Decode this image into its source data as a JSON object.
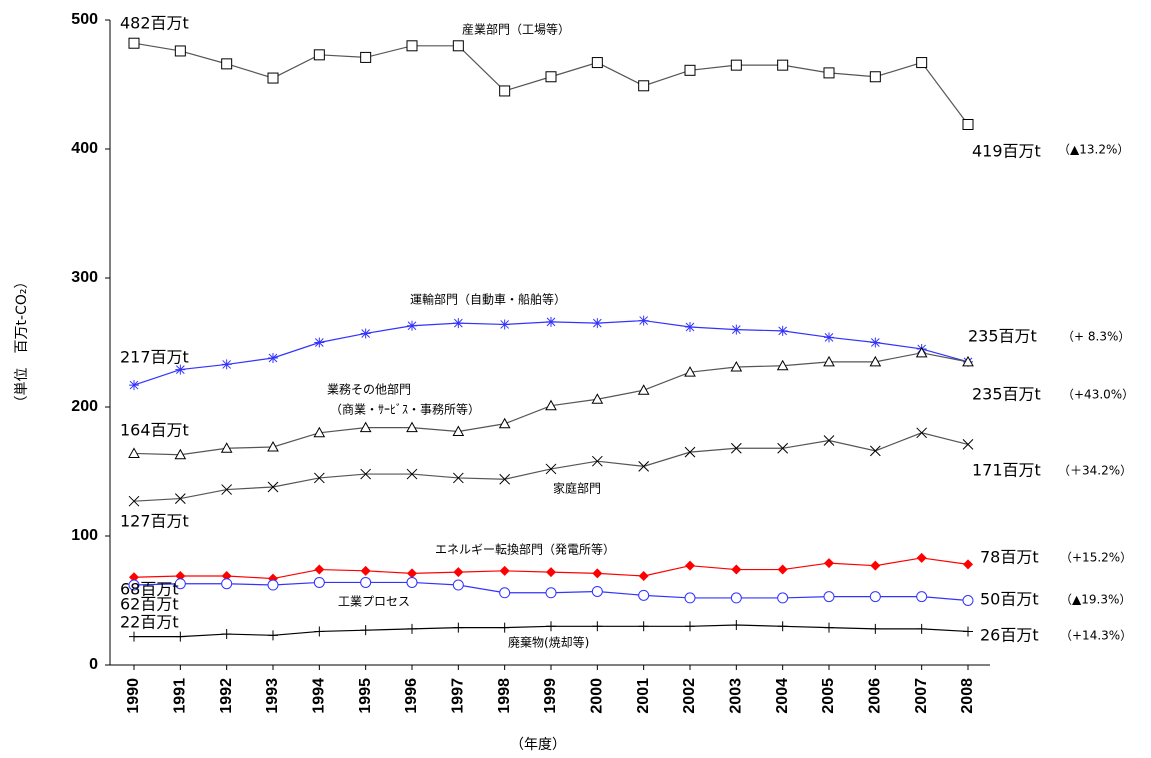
{
  "chart_data": {
    "type": "line",
    "y_label": "（単位　百万t-CO₂）",
    "x_label": "（年度）",
    "categories": [
      "1990",
      "1991",
      "1992",
      "1993",
      "1994",
      "1995",
      "1996",
      "1997",
      "1998",
      "1999",
      "2000",
      "2001",
      "2002",
      "2003",
      "2004",
      "2005",
      "2006",
      "2007",
      "2008"
    ],
    "ylim": [
      0,
      500
    ],
    "yticks": [
      0,
      100,
      200,
      300,
      400,
      500
    ],
    "grid": false,
    "series": [
      {
        "color": "#555555",
        "marker": "square",
        "values": [
          482,
          476,
          466,
          455,
          473,
          471,
          480,
          480,
          445,
          456,
          467,
          449,
          461,
          465,
          465,
          459,
          456,
          467,
          419
        ]
      },
      {
        "color": "#3333ff",
        "marker": "star",
        "values": [
          217,
          229,
          233,
          238,
          250,
          257,
          263,
          265,
          264,
          266,
          265,
          267,
          262,
          260,
          259,
          254,
          250,
          245,
          235
        ]
      },
      {
        "color": "#555555",
        "marker": "triangle",
        "values": [
          164,
          163,
          168,
          169,
          180,
          184,
          184,
          181,
          187,
          201,
          206,
          213,
          227,
          231,
          232,
          235,
          235,
          242,
          235
        ]
      },
      {
        "color": "#555555",
        "marker": "x",
        "values": [
          127,
          129,
          136,
          138,
          145,
          148,
          148,
          145,
          144,
          152,
          158,
          154,
          165,
          168,
          168,
          174,
          166,
          180,
          171
        ]
      },
      {
        "color": "#ff0000",
        "marker": "diamond",
        "values": [
          68,
          69,
          69,
          67,
          74,
          73,
          71,
          72,
          73,
          72,
          71,
          69,
          77,
          74,
          74,
          79,
          77,
          83,
          78
        ]
      },
      {
        "color": "#3333ff",
        "marker": "circle",
        "values": [
          62,
          63,
          63,
          62,
          64,
          64,
          64,
          62,
          56,
          56,
          57,
          54,
          52,
          52,
          52,
          53,
          53,
          53,
          50
        ]
      },
      {
        "color": "#000000",
        "marker": "plus",
        "values": [
          22,
          22,
          24,
          23,
          26,
          27,
          28,
          29,
          29,
          30,
          30,
          30,
          30,
          31,
          30,
          29,
          28,
          28,
          26
        ]
      }
    ],
    "annotations": [
      "482百万t",
      "産業部門（工場等）",
      "419百万t",
      "（▲13.2%）",
      "運輸部門（自動車・船舶等）",
      "217百万t",
      "235百万t",
      "（+ 8.3%）",
      "業務その他部門",
      "（商業・ｻｰﾋﾞｽ・事務所等）",
      "235百万t",
      "（+43.0%）",
      "164百万t",
      "家庭部門",
      "171百万t",
      "（＋34.2%）",
      "127百万t",
      "エネルギー転換部門（発電所等）",
      "78百万t",
      "（+15.2%）",
      "68百万t",
      "62百万t",
      "工業プロセス",
      "50百万t",
      "（▲19.3%）",
      "22百万t",
      "26百万t",
      "（+14.3%）",
      "廃棄物(焼却等)"
    ]
  }
}
